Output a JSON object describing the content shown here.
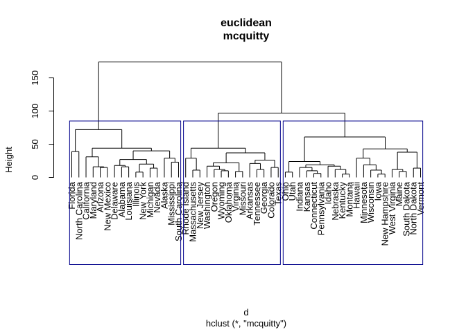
{
  "chart_data": {
    "type": "dendrogram",
    "title": "euclidean",
    "subtitle": "mcquitty",
    "xlabel": "d",
    "sub_xlabel": "hclust (*, \"mcquitty\")",
    "ylabel": "Height",
    "ylim": [
      0,
      175
    ],
    "yticks": [
      0,
      50,
      100,
      150
    ],
    "box_color": "#00008B",
    "box_height": 85,
    "line_color": "#000000",
    "leaves": [
      "Florida",
      "North Carolina",
      "California",
      "Maryland",
      "Arizona",
      "New Mexico",
      "Delaware",
      "Alabama",
      "Louisiana",
      "Illinois",
      "New York",
      "Michigan",
      "Nevada",
      "Alaska",
      "Mississippi",
      "South Carolina",
      "Rhode Island",
      "Massachusetts",
      "New Jersey",
      "Washington",
      "Oregon",
      "Wyoming",
      "Oklahoma",
      "Virginia",
      "Missouri",
      "Arkansas",
      "Tennessee",
      "Georgia",
      "Colorado",
      "Texas",
      "Ohio",
      "Utah",
      "Indiana",
      "Kansas",
      "Connecticut",
      "Pennsylvania",
      "Idaho",
      "Nebraska",
      "Kentucky",
      "Montana",
      "Hawaii",
      "Minnesota",
      "Wisconsin",
      "Iowa",
      "New Hampshire",
      "West Virginia",
      "Maine",
      "South Dakota",
      "North Dakota",
      "Vermont"
    ],
    "clusters": [
      {
        "name": "cluster-1",
        "from": 0,
        "to": 15
      },
      {
        "name": "cluster-2",
        "from": 16,
        "to": 29
      },
      {
        "name": "cluster-3",
        "from": 30,
        "to": 49
      }
    ],
    "tree": {
      "h": 174,
      "c": [
        {
          "h": 72,
          "c": [
            {
              "h": 39,
              "c": [
                {
                  "l": 0
                },
                {
                  "l": 1
                }
              ]
            },
            {
              "h": 44,
              "c": [
                {
                  "h": 31,
                  "c": [
                    {
                      "l": 2
                    },
                    {
                      "h": 16,
                      "c": [
                        {
                          "l": 3
                        },
                        {
                          "h": 15,
                          "c": [
                            {
                              "l": 4
                            },
                            {
                              "l": 5
                            }
                          ]
                        }
                      ]
                    }
                  ]
                },
                {
                  "h": 40,
                  "c": [
                    {
                      "h": 27,
                      "c": [
                        {
                          "h": 18,
                          "c": [
                            {
                              "l": 6
                            },
                            {
                              "h": 16,
                              "c": [
                                {
                                  "l": 7
                                },
                                {
                                  "l": 8
                                }
                              ]
                            }
                          ]
                        },
                        {
                          "h": 20,
                          "c": [
                            {
                              "h": 8,
                              "c": [
                                {
                                  "l": 9
                                },
                                {
                                  "l": 10
                                }
                              ]
                            },
                            {
                              "h": 14,
                              "c": [
                                {
                                  "l": 11
                                },
                                {
                                  "l": 12
                                }
                              ]
                            }
                          ]
                        }
                      ]
                    },
                    {
                      "h": 29,
                      "c": [
                        {
                          "l": 13
                        },
                        {
                          "h": 23,
                          "c": [
                            {
                              "l": 14
                            },
                            {
                              "l": 15
                            }
                          ]
                        }
                      ]
                    }
                  ]
                }
              ]
            }
          ]
        },
        {
          "h": 97,
          "c": [
            {
              "h": 44,
              "c": [
                {
                  "h": 29,
                  "c": [
                    {
                      "l": 16
                    },
                    {
                      "h": 11,
                      "c": [
                        {
                          "l": 17
                        },
                        {
                          "l": 18
                        }
                      ]
                    }
                  ]
                },
                {
                  "h": 37,
                  "c": [
                    {
                      "h": 22,
                      "c": [
                        {
                          "h": 17,
                          "c": [
                            {
                              "l": 19
                            },
                            {
                              "h": 12,
                              "c": [
                                {
                                  "l": 20
                                },
                                {
                                  "h": 10,
                                  "c": [
                                    {
                                      "l": 21
                                    },
                                    {
                                      "l": 22
                                    }
                                  ]
                                }
                              ]
                            }
                          ]
                        },
                        {
                          "h": 9,
                          "c": [
                            {
                              "l": 23
                            },
                            {
                              "l": 24
                            }
                          ]
                        }
                      ]
                    },
                    {
                      "h": 26,
                      "c": [
                        {
                          "h": 21,
                          "c": [
                            {
                              "l": 25
                            },
                            {
                              "h": 12,
                              "c": [
                                {
                                  "l": 26
                                },
                                {
                                  "l": 27
                                }
                              ]
                            }
                          ]
                        },
                        {
                          "h": 15,
                          "c": [
                            {
                              "l": 28
                            },
                            {
                              "l": 29
                            }
                          ]
                        }
                      ]
                    }
                  ]
                }
              ]
            },
            {
              "h": 61,
              "c": [
                {
                  "h": 24,
                  "c": [
                    {
                      "h": 8,
                      "c": [
                        {
                          "l": 30
                        },
                        {
                          "l": 31
                        }
                      ]
                    },
                    {
                      "h": 19,
                      "c": [
                        {
                          "h": 15,
                          "c": [
                            {
                              "l": 32
                            },
                            {
                              "h": 10,
                              "c": [
                                {
                                  "l": 33
                                },
                                {
                                  "h": 6,
                                  "c": [
                                    {
                                      "l": 34
                                    },
                                    {
                                      "l": 35
                                    }
                                  ]
                                }
                              ]
                            }
                          ]
                        },
                        {
                          "h": 17,
                          "c": [
                            {
                              "l": 36
                            },
                            {
                              "h": 12,
                              "c": [
                                {
                                  "l": 37
                                },
                                {
                                  "h": 5,
                                  "c": [
                                    {
                                      "l": 38
                                    },
                                    {
                                      "l": 39
                                    }
                                  ]
                                }
                              ]
                            }
                          ]
                        }
                      ]
                    }
                  ]
                },
                {
                  "h": 43,
                  "c": [
                    {
                      "h": 29,
                      "c": [
                        {
                          "l": 40
                        },
                        {
                          "h": 19,
                          "c": [
                            {
                              "l": 41
                            },
                            {
                              "h": 11,
                              "c": [
                                {
                                  "l": 42
                                },
                                {
                                  "h": 5,
                                  "c": [
                                    {
                                      "l": 43
                                    },
                                    {
                                      "l": 44
                                    }
                                  ]
                                }
                              ]
                            }
                          ]
                        }
                      ]
                    },
                    {
                      "h": 38,
                      "c": [
                        {
                          "h": 12,
                          "c": [
                            {
                              "l": 45
                            },
                            {
                              "h": 9,
                              "c": [
                                {
                                  "l": 46
                                },
                                {
                                  "l": 47
                                }
                              ]
                            }
                          ]
                        },
                        {
                          "h": 14,
                          "c": [
                            {
                              "l": 48
                            },
                            {
                              "l": 49
                            }
                          ]
                        }
                      ]
                    }
                  ]
                }
              ]
            }
          ]
        }
      ]
    }
  }
}
